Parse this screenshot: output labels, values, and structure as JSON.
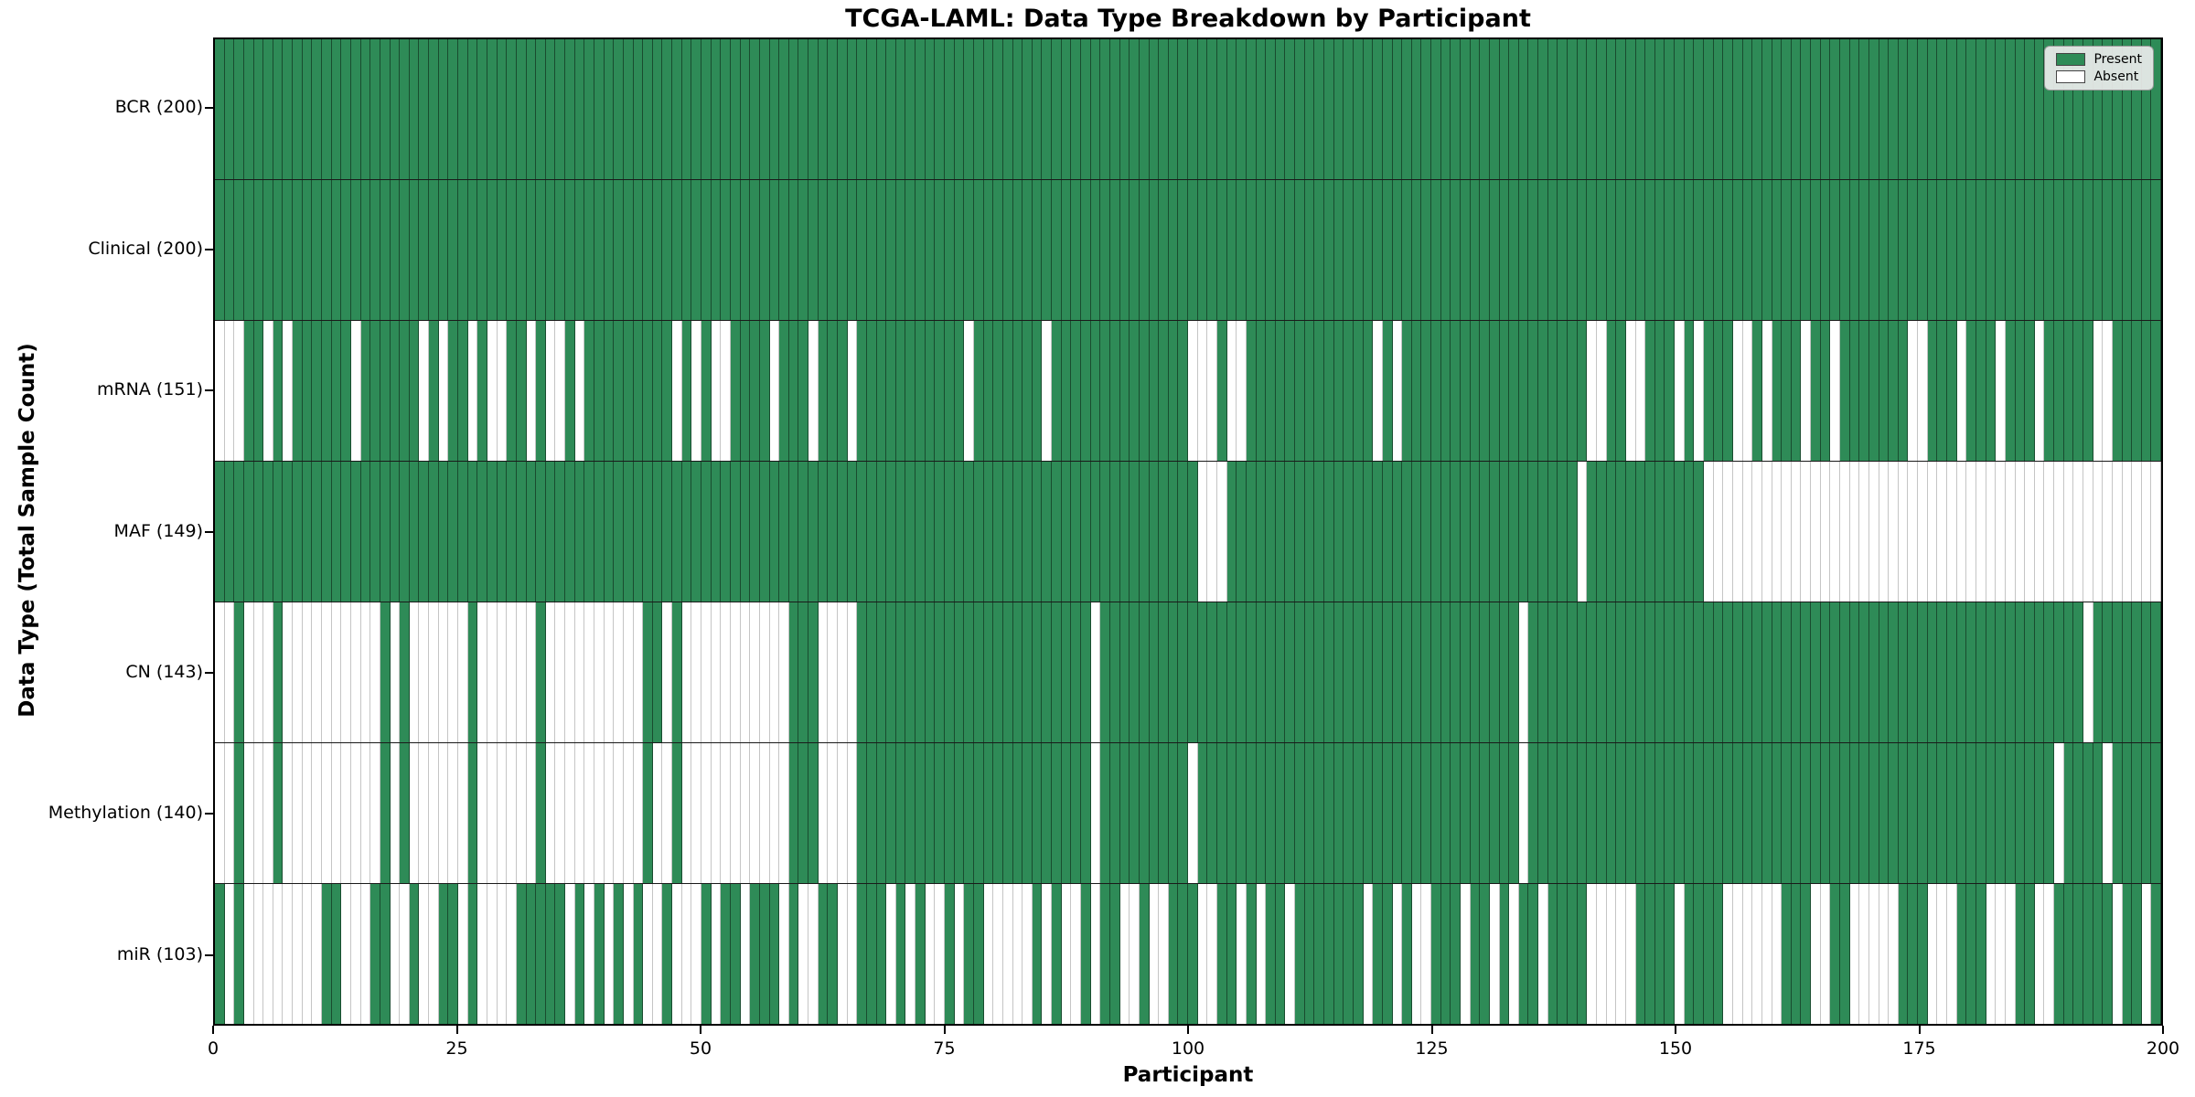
{
  "chart_data": {
    "type": "heatmap",
    "title": "TCGA-LAML: Data Type Breakdown by Participant",
    "xlabel": "Participant",
    "ylabel": "Data Type (Total Sample Count)",
    "x_domain": [
      0,
      200
    ],
    "x_ticks": [
      0,
      25,
      50,
      75,
      100,
      125,
      150,
      175,
      200
    ],
    "grid": "off",
    "legend_position": "upper right",
    "legend": [
      {
        "label": "Present",
        "color": "#2E8B57"
      },
      {
        "label": "Absent",
        "color": "#FFFFFF"
      }
    ],
    "colors": {
      "present": "#2E8B57",
      "absent": "#FFFFFF",
      "cell_edge_on_green": "rgba(0,0,0,0.45)",
      "cell_edge_on_white": "rgba(110,110,110,0.40)",
      "row_separator": "#1a1a1a",
      "axes_border": "#000000"
    },
    "rows": [
      {
        "label": "BCR (200)",
        "name": "BCR",
        "present_count": 200,
        "presence": "11111111111111111111111111111111111111111111111111111111111111111111111111111111111111111111111111111111111111111111111111111111111111111111111111111111111111111111111111111111111111111111111111111111"
      },
      {
        "label": "Clinical (200)",
        "name": "Clinical",
        "present_count": 200,
        "presence": "11111111111111111111111111111111111111111111111111111111111111111111111111111111111111111111111111111111111111111111111111111111111111111111111111111111111111111111111111111111111111111111111111111111"
      },
      {
        "label": "mRNA (151)",
        "name": "mRNA",
        "present_count": 151,
        "presence": "00011010111111011111101011010011010010111111111010100111101110111011111111111011111110111111111111110001001111111111111010111111111111111111100110011101011100101110110111111100111011101110111110011111"
      },
      {
        "label": "MAF (149)",
        "name": "MAF",
        "present_count": 149,
        "presence": "11111111111111111111111111111111111111111111111111111111111111111111111111111111111111111111111111111000111111111111111111111111111111111111011111111111100000000000000000000000000000000000000000000000"
      },
      {
        "label": "CN (143)",
        "name": "CN",
        "present_count": 143,
        "presence": "00100010000000000101000000100000010000000000110100000000000111000011111111111111111111111101111111111111111111111111111111111111111111011111111111111111111111111111111111111111111111111111111101111111"
      },
      {
        "label": "Methylation (140)",
        "name": "Methylation",
        "present_count": 140,
        "presence": "00100010000000000101000000100000010000000000100100000000000111000011111111111111111111111101111111110111111111111111111111111111111111011111111111111111111111111111111111111111111111111111101111011111111"
      },
      {
        "label": "miR (103)",
        "name": "miR",
        "present_count": 103,
        "presence": "10100000000110001100100110100001111101010101001000101101110100110011101010010110000010100101100100111001101011011111110110100111011010110111100000111101111000000111001100000111000111000110011111101101"
      }
    ]
  }
}
